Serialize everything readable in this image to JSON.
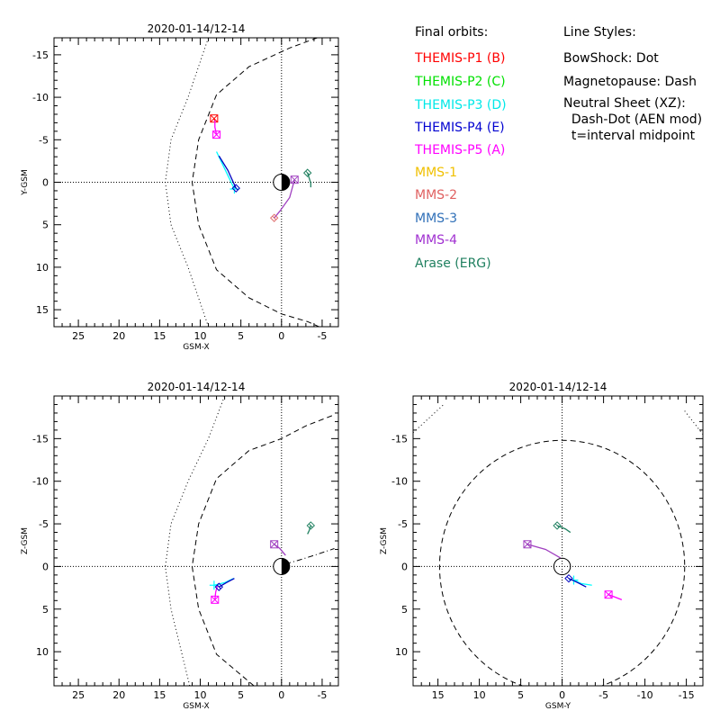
{
  "chart_data": [
    {
      "type": "scatter",
      "title": "2020-01-14/12-14",
      "xlabel": "GSM-X",
      "ylabel": "Y-GSM",
      "xlim": [
        28,
        -7
      ],
      "ylim": [
        -17,
        17
      ],
      "x_ticks": [
        "25",
        "20",
        "15",
        "10",
        "5",
        "0",
        "-5"
      ],
      "y_ticks": [
        "-15",
        "-10",
        "-5",
        "0",
        "5",
        "10",
        "15"
      ],
      "zero_lines": true,
      "earth": true,
      "boundaries": [
        {
          "name": "BowShock",
          "style": "dot",
          "points": [
            [
              9,
              -17
            ],
            [
              11.5,
              -10
            ],
            [
              13.6,
              -5
            ],
            [
              14.3,
              0
            ],
            [
              13.6,
              5
            ],
            [
              11.5,
              10
            ],
            [
              9,
              17
            ]
          ]
        },
        {
          "name": "Magnetopause",
          "style": "dash",
          "points": [
            [
              -4.4,
              -17
            ],
            [
              -1,
              -15.8
            ],
            [
              4,
              -13.6
            ],
            [
              8,
              -10.3
            ],
            [
              10.2,
              -5
            ],
            [
              11,
              0
            ],
            [
              10.2,
              5
            ],
            [
              8,
              10.3
            ],
            [
              4,
              13.6
            ],
            [
              0,
              15.5
            ],
            [
              -3.2,
              16.4
            ],
            [
              -4.6,
              17
            ]
          ]
        }
      ],
      "tracks": [
        {
          "name": "THEMIS-P1 (B)",
          "color": "#ff0000",
          "marker": "square",
          "points": [
            [
              8.3,
              -7.5
            ],
            [
              8.2,
              -7.2
            ]
          ]
        },
        {
          "name": "THEMIS-P5 (A)",
          "color": "#ff00ff",
          "marker": "square",
          "points": [
            [
              8.0,
              -5.6
            ],
            [
              8.2,
              -6.5
            ],
            [
              8.2,
              -7.3
            ]
          ]
        },
        {
          "name": "THEMIS-P3 (D)",
          "color": "#00ffff",
          "marker": "plus",
          "points": [
            [
              5.8,
              0.8
            ],
            [
              6.8,
              -1.2
            ],
            [
              8.0,
              -3.6
            ]
          ]
        },
        {
          "name": "THEMIS-P4 (E)",
          "color": "#0000c0",
          "marker": "diamond",
          "points": [
            [
              5.6,
              0.7
            ],
            [
              6.6,
              -1.4
            ],
            [
              7.7,
              -3.1
            ]
          ]
        },
        {
          "name": "MMS-4",
          "color": "#a040c0",
          "marker": "square",
          "points": [
            [
              -1.6,
              -0.3
            ],
            [
              -1.0,
              1.8
            ],
            [
              0.2,
              3.4
            ],
            [
              0.9,
              4.2
            ]
          ]
        },
        {
          "name": "MMS-2",
          "color": "#e07070",
          "marker": "diamond",
          "points": [
            [
              0.9,
              4.2
            ],
            [
              0.9,
              4.2
            ]
          ]
        },
        {
          "name": "Arase (ERG)",
          "color": "#208060",
          "marker": "diamond",
          "points": [
            [
              -3.2,
              -1.1
            ],
            [
              -3.6,
              0.1
            ],
            [
              -3.6,
              0.6
            ]
          ]
        }
      ]
    },
    {
      "type": "scatter",
      "title": "2020-01-14/12-14",
      "xlabel": "GSM-X",
      "ylabel": "Z-GSM",
      "xlim": [
        28,
        -7
      ],
      "ylim": [
        -20,
        14
      ],
      "x_ticks": [
        "25",
        "20",
        "15",
        "10",
        "5",
        "0",
        "-5"
      ],
      "y_ticks": [
        "10",
        "5",
        "0",
        "-5",
        "-10",
        "-15"
      ],
      "zero_lines": true,
      "earth": true,
      "boundaries": [
        {
          "name": "BowShock",
          "style": "dot",
          "points": [
            [
              11.3,
              14
            ],
            [
              13.6,
              5
            ],
            [
              14.3,
              0
            ],
            [
              13.6,
              -5
            ],
            [
              11.5,
              -10
            ],
            [
              9,
              -15
            ],
            [
              7,
              -20
            ]
          ]
        },
        {
          "name": "Magnetopause",
          "style": "dash",
          "points": [
            [
              3.4,
              14
            ],
            [
              8,
              10.3
            ],
            [
              10.2,
              5
            ],
            [
              11,
              0
            ],
            [
              10.2,
              -5
            ],
            [
              8,
              -10.3
            ],
            [
              4,
              -13.6
            ],
            [
              0,
              -15
            ],
            [
              -3,
              -16.5
            ],
            [
              -6.5,
              -17.8
            ]
          ]
        },
        {
          "name": "Neutral Sheet (XZ)",
          "style": "dashdot",
          "points": [
            [
              -0.5,
              -0.3
            ],
            [
              -2,
              -0.7
            ],
            [
              -4,
              -1.3
            ],
            [
              -6.5,
              -2.1
            ]
          ]
        }
      ],
      "tracks": [
        {
          "name": "THEMIS-P5 (A)",
          "color": "#ff00ff",
          "marker": "square",
          "points": [
            [
              8.2,
              3.9
            ],
            [
              8.1,
              3.0
            ],
            [
              7.9,
              2.3
            ]
          ]
        },
        {
          "name": "THEMIS-P3 (D)",
          "color": "#00ffff",
          "marker": "plus",
          "points": [
            [
              8.3,
              2.2
            ],
            [
              7.0,
              1.9
            ],
            [
              5.9,
              1.4
            ]
          ]
        },
        {
          "name": "THEMIS-P4 (E)",
          "color": "#0000c0",
          "marker": "diamond",
          "points": [
            [
              7.7,
              2.4
            ],
            [
              6.8,
              1.9
            ],
            [
              5.8,
              1.4
            ]
          ]
        },
        {
          "name": "MMS-4",
          "color": "#a040c0",
          "marker": "square",
          "points": [
            [
              0.9,
              -2.6
            ],
            [
              0.2,
              -2.1
            ],
            [
              -0.5,
              -1.3
            ]
          ]
        },
        {
          "name": "Arase (ERG)",
          "color": "#208060",
          "marker": "diamond",
          "points": [
            [
              -3.6,
              -4.8
            ],
            [
              -3.4,
              -4.2
            ],
            [
              -3.2,
              -3.8
            ]
          ]
        }
      ]
    },
    {
      "type": "scatter",
      "title": "2020-01-14/12-14",
      "xlabel": "GSM-Y",
      "ylabel": "Z-GSM",
      "xlim": [
        18,
        -17
      ],
      "ylim": [
        -20,
        14
      ],
      "x_ticks": [
        "15",
        "10",
        "5",
        "0",
        "-5",
        "-10",
        "-15"
      ],
      "y_ticks": [
        "10",
        "5",
        "0",
        "-5",
        "-10",
        "-15"
      ],
      "zero_lines": true,
      "earth": false,
      "boundaries": [
        {
          "name": "Magnetopause",
          "style": "dash",
          "circle": [
            0,
            0,
            14.8
          ]
        },
        {
          "name": "BowShock",
          "style": "dot",
          "points": [
            [
              18,
              -15.7
            ],
            [
              14.3,
              -19
            ]
          ]
        },
        {
          "name": "BowShock",
          "style": "dot",
          "points": [
            [
              -17,
              -15.5
            ],
            [
              -14.6,
              -18.5
            ]
          ]
        }
      ],
      "tracks": [
        {
          "name": "THEMIS-P5 (A)",
          "color": "#ff00ff",
          "marker": "square",
          "points": [
            [
              -5.6,
              3.3
            ],
            [
              -6.4,
              3.6
            ],
            [
              -7.2,
              3.9
            ]
          ]
        },
        {
          "name": "THEMIS-P3 (D)",
          "color": "#00ffff",
          "marker": "plus",
          "points": [
            [
              -1.4,
              1.6
            ],
            [
              -2.3,
              2.0
            ],
            [
              -3.6,
              2.2
            ]
          ]
        },
        {
          "name": "THEMIS-P4 (E)",
          "color": "#0000c0",
          "marker": "diamond",
          "points": [
            [
              -0.8,
              1.4
            ],
            [
              -1.9,
              1.9
            ],
            [
              -2.9,
              2.4
            ]
          ]
        },
        {
          "name": "MMS-4",
          "color": "#a040c0",
          "marker": "square",
          "points": [
            [
              4.2,
              -2.6
            ],
            [
              2.0,
              -2.0
            ],
            [
              0.2,
              -1.0
            ]
          ]
        },
        {
          "name": "Arase (ERG)",
          "color": "#208060",
          "marker": "diamond",
          "points": [
            [
              0.6,
              -4.8
            ],
            [
              -0.4,
              -4.4
            ],
            [
              -1.0,
              -4.0
            ]
          ]
        }
      ]
    }
  ],
  "legend": {
    "header": "Final orbits:",
    "items": [
      {
        "label": "THEMIS-P1 (B)",
        "color": "#ff0000"
      },
      {
        "label": "THEMIS-P2 (C)",
        "color": "#00e000"
      },
      {
        "label": "THEMIS-P3 (D)",
        "color": "#00e8e8"
      },
      {
        "label": "THEMIS-P4 (E)",
        "color": "#0000d0"
      },
      {
        "label": "THEMIS-P5 (A)",
        "color": "#ff00ff"
      },
      {
        "label": "MMS-1",
        "color": "#f0c000"
      },
      {
        "label": "MMS-2",
        "color": "#e06060"
      },
      {
        "label": "MMS-3",
        "color": "#3070b8"
      },
      {
        "label": "MMS-4",
        "color": "#a030d0"
      },
      {
        "label": "Arase (ERG)",
        "color": "#208060"
      }
    ]
  },
  "line_styles": {
    "header": "Line Styles:",
    "lines": [
      "BowShock: Dot",
      "Magnetopause: Dash",
      "Neutral Sheet (XZ):",
      "  Dash-Dot (AEN mod)",
      "  t=interval midpoint"
    ]
  }
}
